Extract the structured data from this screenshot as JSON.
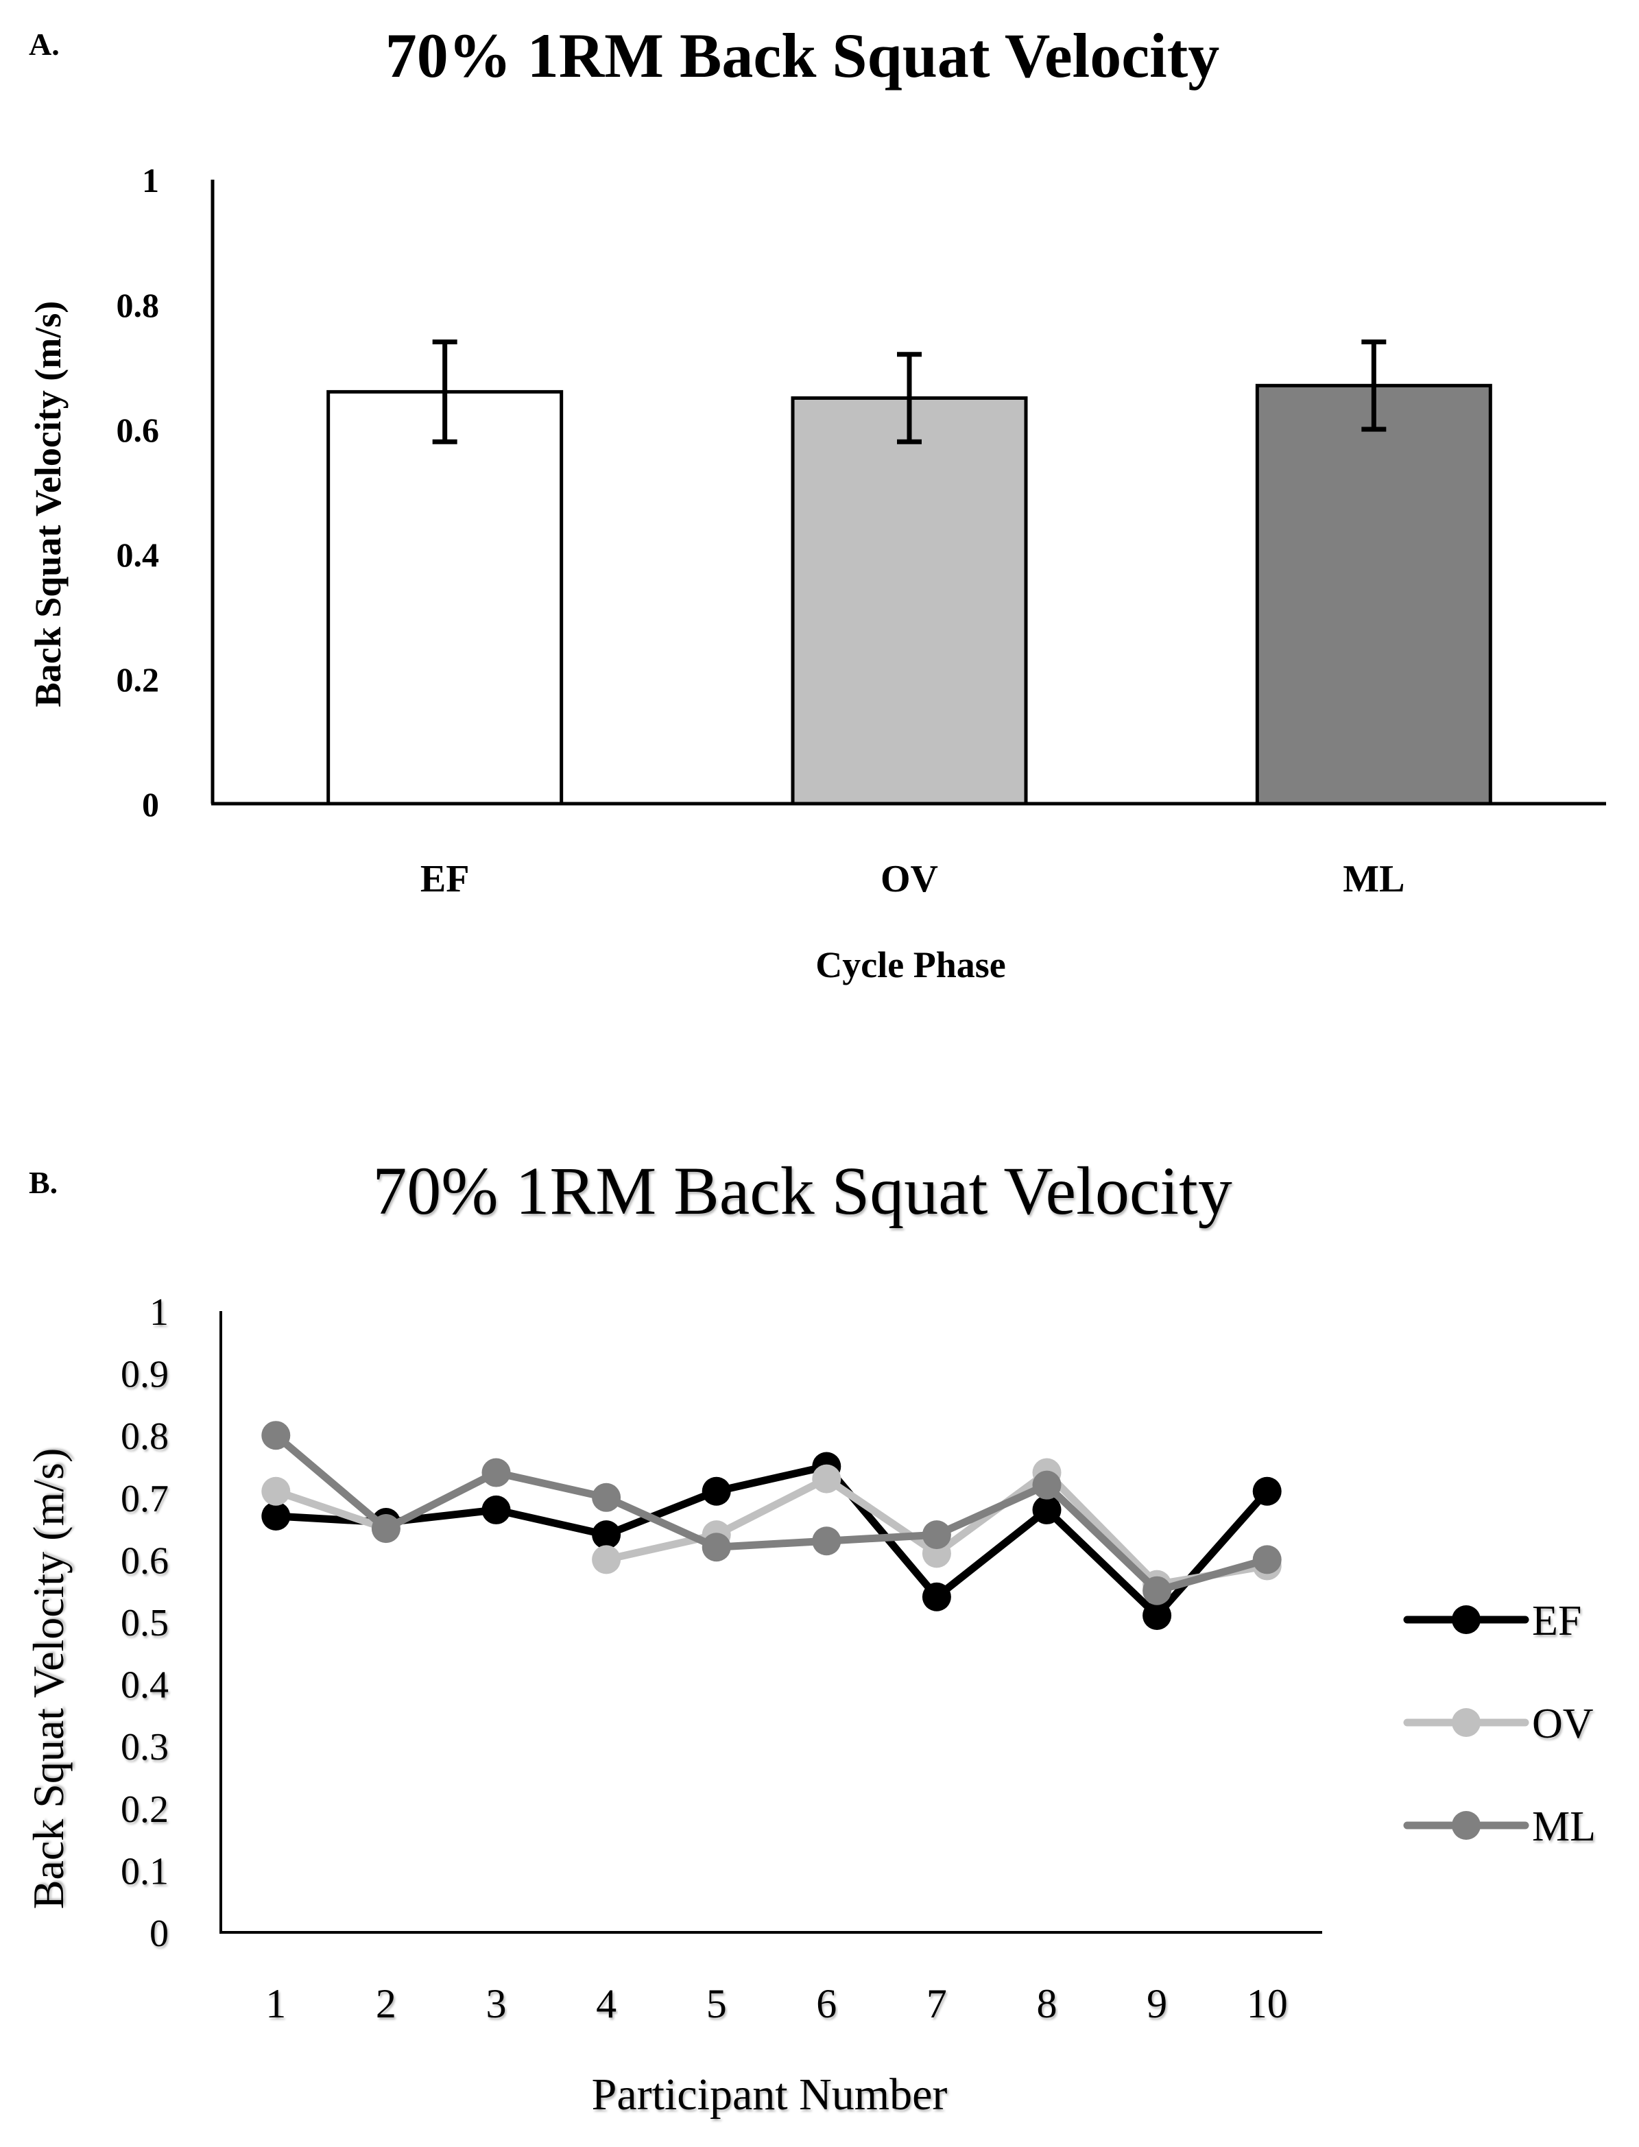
{
  "panel_a": {
    "label": "A.",
    "chart_data": {
      "type": "bar",
      "title": "70% 1RM Back Squat Velocity",
      "xlabel": "Cycle Phase",
      "ylabel": "Back Squat Velocity (m/s)",
      "categories": [
        "EF",
        "OV",
        "ML"
      ],
      "values": [
        0.66,
        0.65,
        0.67
      ],
      "error": [
        0.08,
        0.07,
        0.07
      ],
      "colors": [
        "#ffffff",
        "#c0c0c0",
        "#808080"
      ],
      "ylim": [
        0,
        1
      ],
      "yticks": [
        "0",
        "0.2",
        "0.4",
        "0.6",
        "0.8",
        "1"
      ],
      "ytick_values": [
        0,
        0.2,
        0.4,
        0.6,
        0.8,
        1
      ]
    }
  },
  "panel_b": {
    "label": "B.",
    "chart_data": {
      "type": "line",
      "title": "70% 1RM Back Squat Velocity",
      "xlabel": "Participant Number",
      "ylabel": "Back Squat Velocity (m/s)",
      "x": [
        "1",
        "2",
        "3",
        "4",
        "5",
        "6",
        "7",
        "8",
        "9",
        "10"
      ],
      "ylim": [
        0,
        1
      ],
      "yticks": [
        "0",
        "0.1",
        "0.2",
        "0.3",
        "0.4",
        "0.5",
        "0.6",
        "0.7",
        "0.8",
        "0.9",
        "1"
      ],
      "ytick_values": [
        0,
        0.1,
        0.2,
        0.3,
        0.4,
        0.5,
        0.6,
        0.7,
        0.8,
        0.9,
        1
      ],
      "legend_position": "right",
      "series": [
        {
          "name": "EF",
          "color": "#000000",
          "values": [
            0.67,
            0.66,
            0.68,
            0.64,
            0.71,
            0.75,
            0.54,
            0.68,
            0.51,
            0.71
          ]
        },
        {
          "name": "OV",
          "color": "#c0c0c0",
          "values": [
            0.71,
            0.65,
            null,
            0.6,
            0.64,
            0.73,
            0.61,
            0.74,
            0.56,
            0.59
          ]
        },
        {
          "name": "ML",
          "color": "#808080",
          "values": [
            0.8,
            0.65,
            0.74,
            0.7,
            0.62,
            0.63,
            0.64,
            0.72,
            0.55,
            0.6
          ]
        }
      ]
    }
  }
}
